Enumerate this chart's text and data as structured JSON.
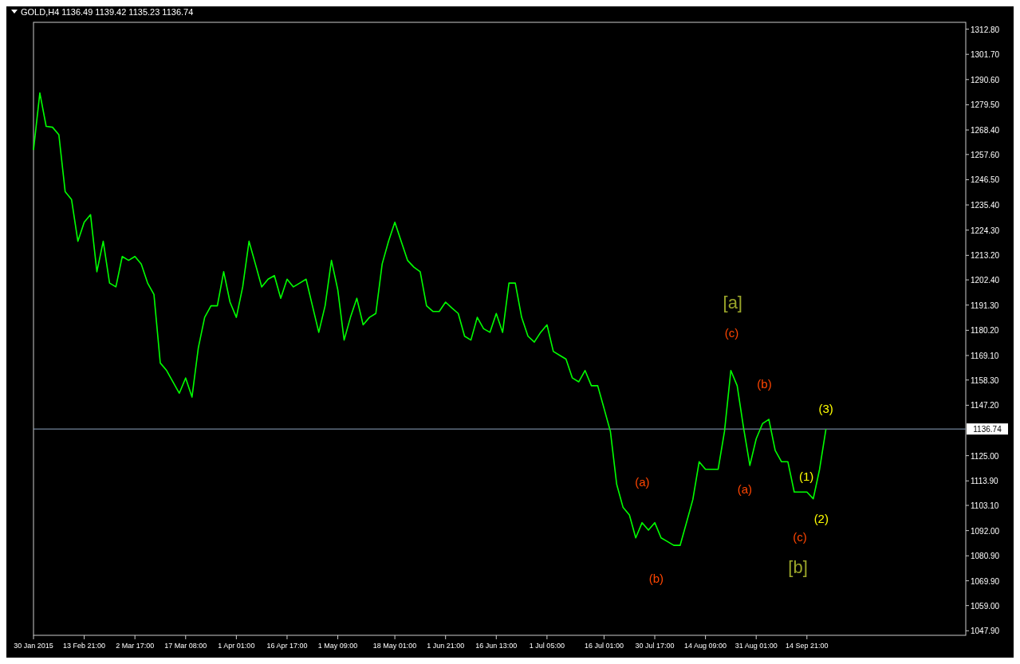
{
  "chart_data": {
    "type": "line",
    "title": "GOLD,H4  1136.49 1139.42 1135.23 1136.74",
    "categories": [
      "30 Jan 2015",
      null,
      null,
      null,
      null,
      null,
      null,
      null,
      "13 Feb 21:00",
      null,
      null,
      null,
      null,
      null,
      null,
      null,
      "2 Mar 17:00",
      null,
      null,
      null,
      null,
      null,
      null,
      null,
      "17 Mar 08:00",
      null,
      null,
      null,
      null,
      null,
      null,
      null,
      "1 Apr 01:00",
      null,
      null,
      null,
      null,
      null,
      null,
      null,
      "16 Apr 17:00",
      null,
      null,
      null,
      null,
      null,
      null,
      null,
      "1 May 09:00",
      null,
      null,
      null,
      null,
      null,
      null,
      null,
      null,
      "18 May 01:00",
      null,
      null,
      null,
      null,
      null,
      null,
      null,
      "1 Jun 21:00",
      null,
      null,
      null,
      null,
      null,
      null,
      null,
      "16 Jun 13:00",
      null,
      null,
      null,
      null,
      null,
      null,
      null,
      "1 Jul 05:00",
      null,
      null,
      null,
      null,
      null,
      null,
      null,
      null,
      "16 Jul 01:00",
      null,
      null,
      null,
      null,
      null,
      null,
      null,
      "30 Jul 17:00",
      null,
      null,
      null,
      null,
      null,
      null,
      null,
      "14 Aug 09:00",
      null,
      null,
      null,
      null,
      null,
      null,
      null,
      "31 Aug 01:00",
      null,
      null,
      null,
      null,
      null,
      null,
      null,
      "14 Sep 21:00",
      null,
      null,
      null
    ],
    "ylim": [
      1045.9,
      1315.8
    ],
    "yticks": [
      {
        "value": 1047.9,
        "label": "1047.90"
      },
      {
        "value": 1059,
        "label": "1059.00"
      },
      {
        "value": 1069.9,
        "label": "1069.90"
      },
      {
        "value": 1080.9,
        "label": "1080.90"
      },
      {
        "value": 1092,
        "label": "1092.00"
      },
      {
        "value": 1103.1,
        "label": "1103.10"
      },
      {
        "value": 1113.9,
        "label": "1113.90"
      },
      {
        "value": 1125,
        "label": "1125.00"
      },
      {
        "value": 1147.2,
        "label": "1147.20"
      },
      {
        "value": 1158.3,
        "label": "1158.30"
      },
      {
        "value": 1169.1,
        "label": "1169.10"
      },
      {
        "value": 1180.2,
        "label": "1180.20"
      },
      {
        "value": 1191.3,
        "label": "1191.30"
      },
      {
        "value": 1202.4,
        "label": "1202.40"
      },
      {
        "value": 1213.2,
        "label": "1213.20"
      },
      {
        "value": 1224.3,
        "label": "1224.30"
      },
      {
        "value": 1235.4,
        "label": "1235.40"
      },
      {
        "value": 1246.5,
        "label": "1246.50"
      },
      {
        "value": 1257.6,
        "label": "1257.60"
      },
      {
        "value": 1268.4,
        "label": "1268.40"
      },
      {
        "value": 1279.5,
        "label": "1279.50"
      },
      {
        "value": 1290.6,
        "label": "1290.60"
      },
      {
        "value": 1301.7,
        "label": "1301.70"
      },
      {
        "value": 1312.8,
        "label": "1312.80"
      }
    ],
    "grid": false,
    "series": [
      {
        "color": "#00ff00",
        "values": [
          1259.6,
          1284.7,
          1270,
          1269.6,
          1266.3,
          1241.2,
          1237.8,
          1219.4,
          1227.8,
          1231.1,
          1206,
          1219.4,
          1201,
          1199.3,
          1212.7,
          1211,
          1212.7,
          1209.4,
          1201,
          1196,
          1165.8,
          1162.5,
          1157.5,
          1152.5,
          1159.2,
          1150.8,
          1172.5,
          1185.9,
          1191,
          1191,
          1206,
          1192.6,
          1185.9,
          1199.3,
          1219.4,
          1209.4,
          1199.3,
          1202.7,
          1204.3,
          1194.3,
          1202.7,
          1199.3,
          1201,
          1202.7,
          1191,
          1179.3,
          1191,
          1211,
          1198,
          1175.9,
          1185.9,
          1194.3,
          1182.6,
          1185.9,
          1187.6,
          1209.4,
          1219.4,
          1227.8,
          1219.4,
          1211,
          1208,
          1206,
          1191,
          1188.5,
          1188.5,
          1192.6,
          1190,
          1187.6,
          1177.6,
          1175.9,
          1185.9,
          1180.9,
          1179.3,
          1187.6,
          1179.3,
          1201,
          1201,
          1185.9,
          1177.6,
          1175,
          1179.3,
          1182.6,
          1170.9,
          1169.2,
          1167.5,
          1159.2,
          1157.5,
          1162.5,
          1155.8,
          1155.8,
          1145.8,
          1135.7,
          1112.3,
          1102.2,
          1098.9,
          1088.8,
          1095.5,
          1092.2,
          1095.5,
          1088.8,
          1087.2,
          1085.5,
          1085.5,
          1095.5,
          1105.6,
          1122.3,
          1119,
          1119,
          1119,
          1135.7,
          1162.5,
          1155.8,
          1137.4,
          1120.7,
          1132.4,
          1139.1,
          1141,
          1127.3,
          1122.3,
          1122.3,
          1109,
          1109,
          1109,
          1106,
          1119,
          1136.7
        ]
      }
    ],
    "ref_lines": [
      {
        "axis": "y",
        "value": 1136.74,
        "label": "1136.74",
        "color": "#8fa3bf"
      }
    ],
    "annotations": [
      "[a]",
      "(c)",
      "(b)",
      "(3)",
      "(a)",
      "(a)",
      "(1)",
      "(2)",
      "(c)",
      "[b]",
      "(b)"
    ]
  }
}
